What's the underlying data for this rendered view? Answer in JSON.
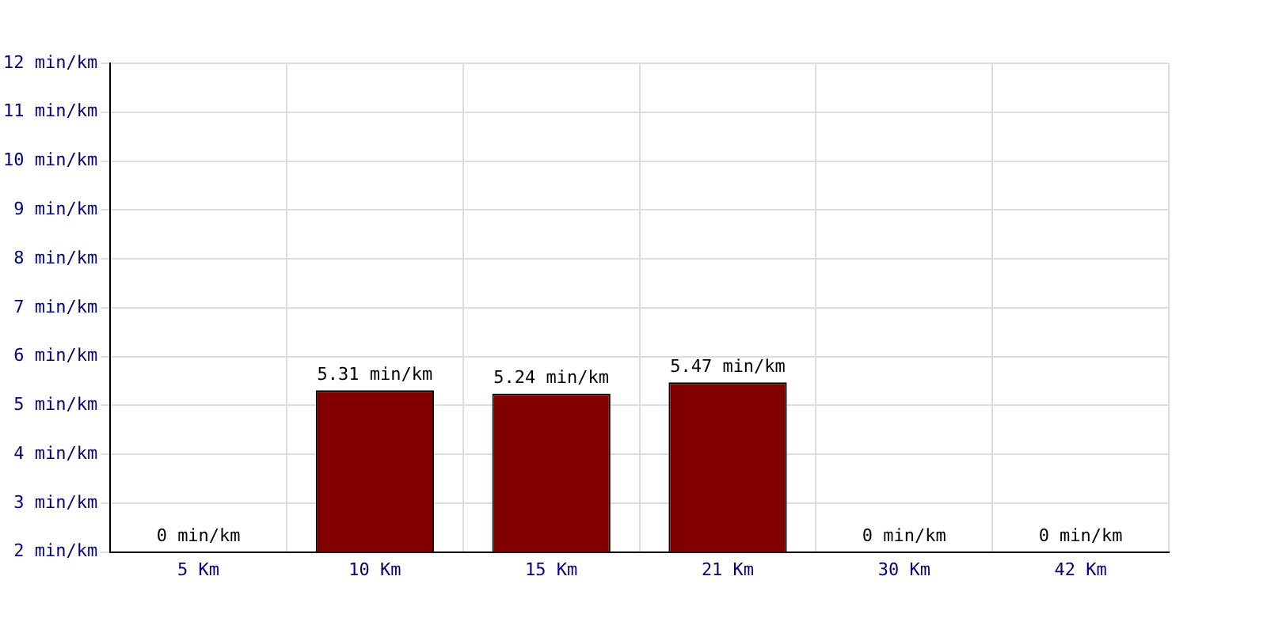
{
  "chart_data": {
    "type": "bar",
    "categories": [
      "5 Km",
      "10 Km",
      "15 Km",
      "21 Km",
      "30 Km",
      "42 Km"
    ],
    "values": [
      null,
      5.31,
      5.24,
      5.47,
      null,
      null
    ],
    "value_labels": [
      "0 min/km",
      "5.31 min/km",
      "5.24 min/km",
      "5.47 min/km",
      "0 min/km",
      "0 min/km"
    ],
    "color": "#800000",
    "ylim": [
      2,
      12
    ],
    "yticks": [
      {
        "value": 2,
        "label": "2 min/km"
      },
      {
        "value": 3,
        "label": "3 min/km"
      },
      {
        "value": 4,
        "label": "4 min/km"
      },
      {
        "value": 5,
        "label": "5 min/km"
      },
      {
        "value": 6,
        "label": "6 min/km"
      },
      {
        "value": 7,
        "label": "7 min/km"
      },
      {
        "value": 8,
        "label": "8 min/km"
      },
      {
        "value": 9,
        "label": "9 min/km"
      },
      {
        "value": 10,
        "label": "10 min/km"
      },
      {
        "value": 11,
        "label": "11 min/km"
      },
      {
        "value": 12,
        "label": "12 min/km"
      }
    ],
    "grid": true,
    "legend": false
  }
}
